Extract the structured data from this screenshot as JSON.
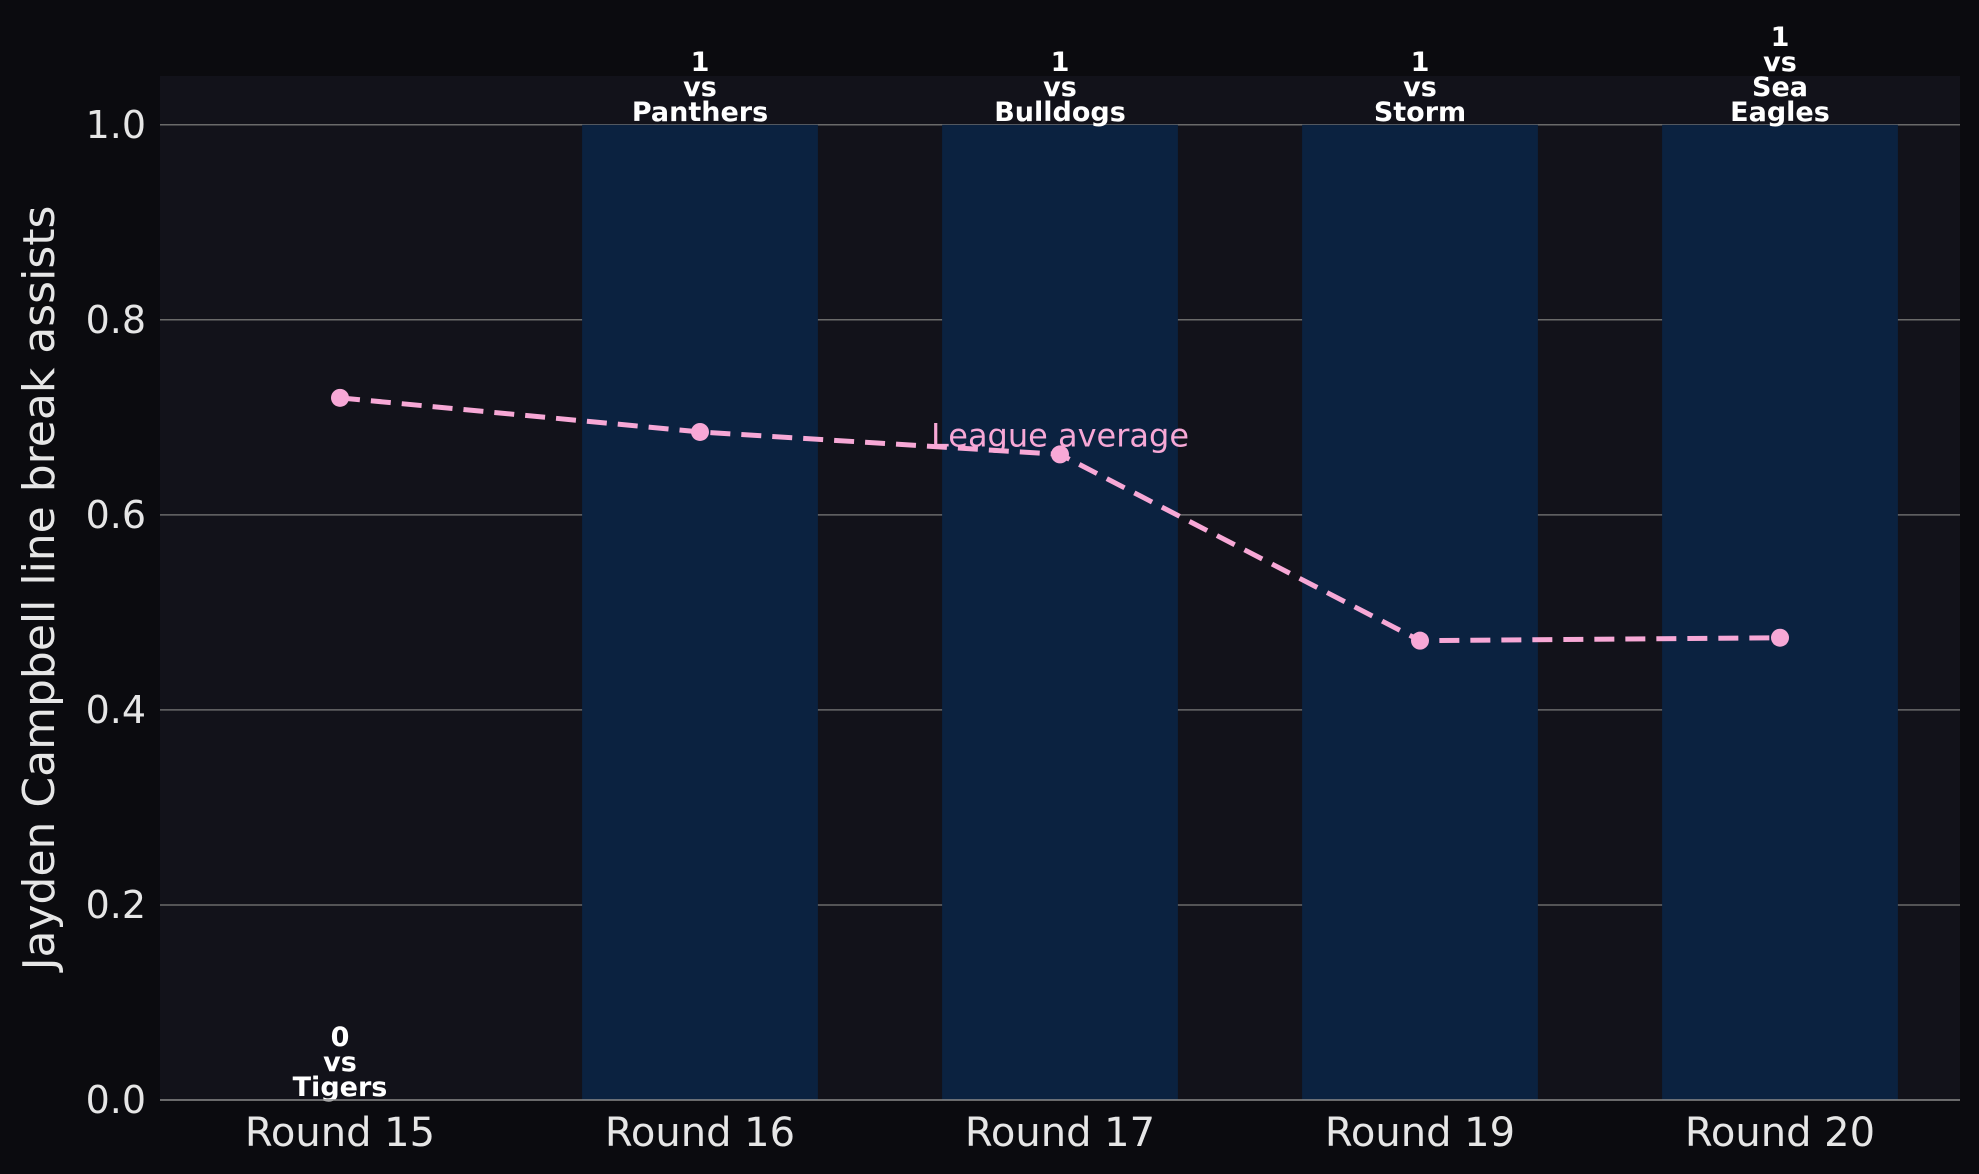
{
  "chart_data": {
    "type": "bar",
    "categories": [
      "Round 15",
      "Round 16",
      "Round 17",
      "Round 19",
      "Round 20"
    ],
    "values": [
      0,
      1,
      1,
      1,
      1
    ],
    "bar_labels": [
      [
        "0",
        "vs",
        "Tigers"
      ],
      [
        "1",
        "vs",
        "Panthers"
      ],
      [
        "1",
        "vs",
        "Bulldogs"
      ],
      [
        "1",
        "vs",
        "Storm"
      ],
      [
        "1",
        "vs",
        "Sea",
        "Eagles"
      ]
    ],
    "series": [
      {
        "name": "League average",
        "type": "line",
        "style": "dashed",
        "values": [
          0.72,
          0.685,
          0.662,
          0.471,
          0.474
        ]
      }
    ],
    "xlabel": "",
    "ylabel": "Jayden Campbell line break assists",
    "ylim": [
      0,
      1.05
    ],
    "yticks": [
      "0.0",
      "0.2",
      "0.4",
      "0.6",
      "0.8",
      "1.0"
    ],
    "grid": "horizontal",
    "colors": {
      "background": "#0b0b0f",
      "plot_background": "#12121a",
      "bar": "#0b2240",
      "line": "#f7a8d6",
      "grid": "#6a6a6a",
      "text": "#e6e6e6"
    }
  }
}
